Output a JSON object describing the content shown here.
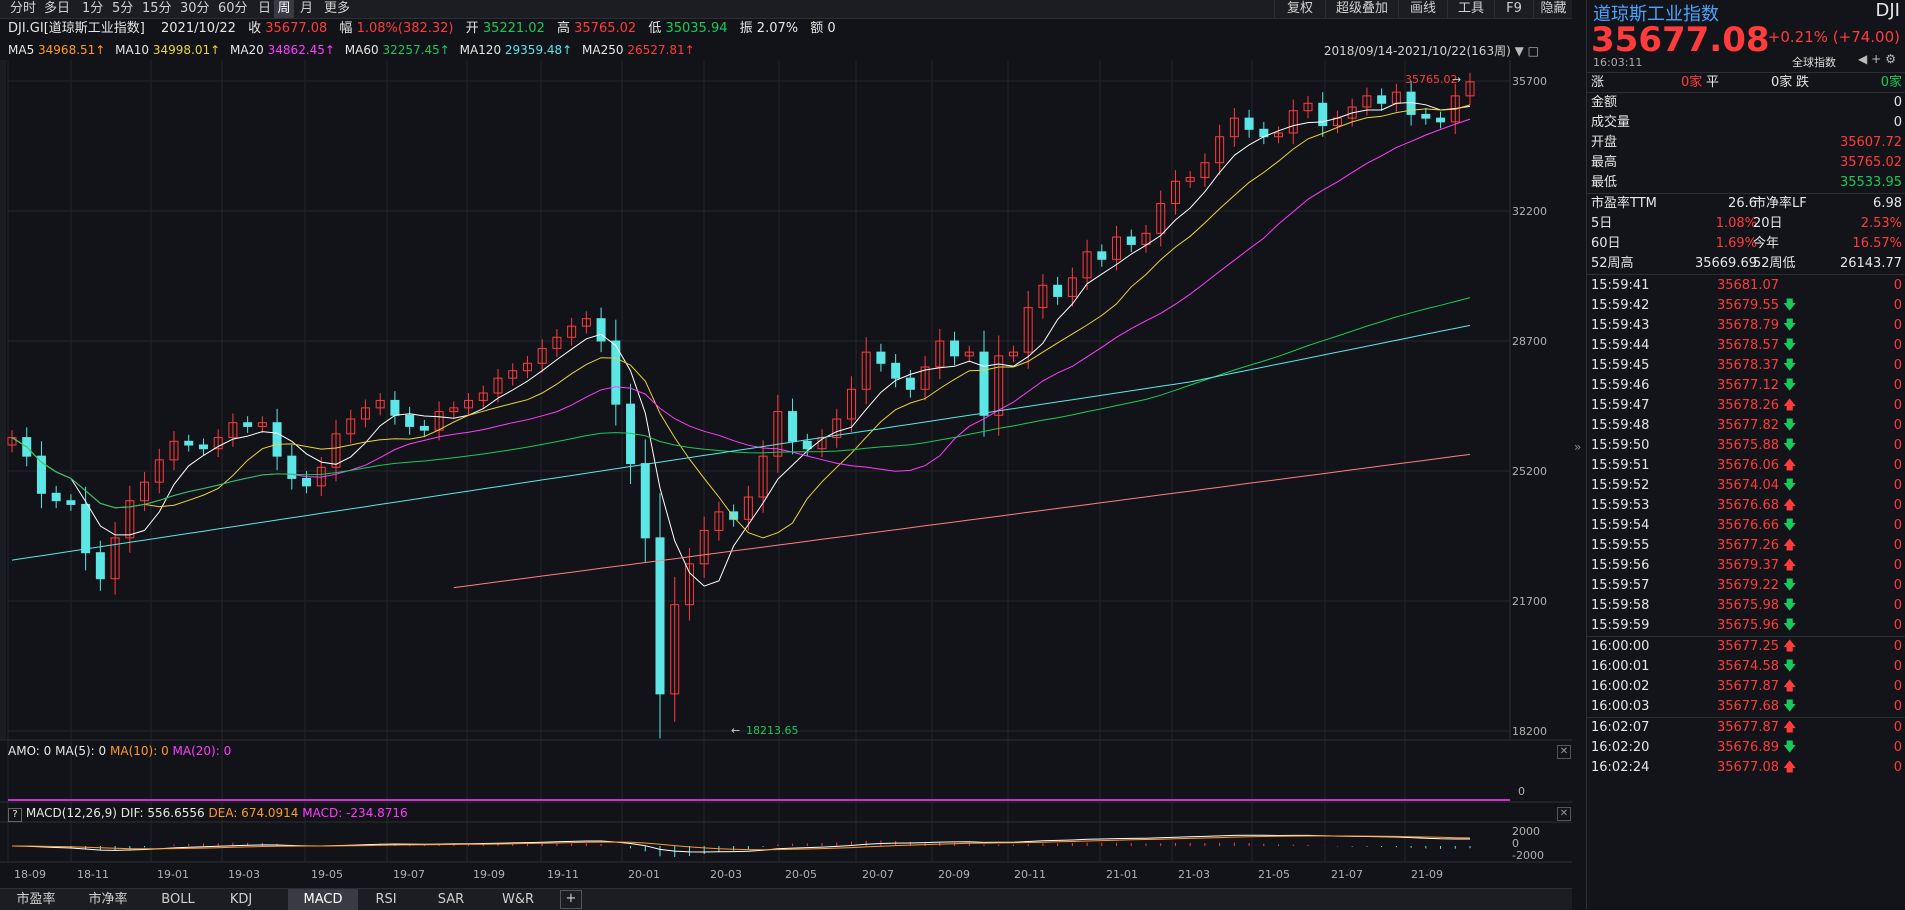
{
  "toolbar": {
    "periods": [
      "分时",
      "多日",
      "1分",
      "5分",
      "15分",
      "30分",
      "60分",
      "日",
      "周",
      "月",
      "更多"
    ],
    "active_period": "周",
    "right_items": [
      "复权",
      "超级叠加",
      "画线",
      "工具",
      "F9",
      "隐藏"
    ]
  },
  "info": {
    "name": "DJI.GI[道琼斯工业指数]",
    "date": "2021/10/22",
    "close_label": "收",
    "close": "35677.08",
    "change_label": "幅",
    "change": "1.08%(382.32)",
    "open_label": "开",
    "open": "35221.02",
    "high_label": "高",
    "high": "35765.02",
    "low_label": "低",
    "low": "35035.94",
    "amp_label": "振",
    "amp": "2.07%",
    "amount_label": "额",
    "amount": "0"
  },
  "ma": {
    "ma5_label": "MA5",
    "ma5": "34968.51↑",
    "ma10_label": "MA10",
    "ma10": "34998.01↑",
    "ma20_label": "MA20",
    "ma20": "34862.45↑",
    "ma60_label": "MA60",
    "ma60": "32257.45↑",
    "ma120_label": "MA120",
    "ma120": "29359.48↑",
    "ma250_label": "MA250",
    "ma250": "26527.81↑"
  },
  "range": "2018/09/14-2021/10/22(163周)",
  "price_axis": [
    "35700",
    "32200",
    "28700",
    "25200",
    "21700",
    "18200"
  ],
  "annotations": {
    "high": "35765.02",
    "low": "18213.65"
  },
  "amo": {
    "label": "AMO: 0",
    "ma5": "MA(5): 0",
    "ma10": "MA(10): 0",
    "ma20": "MA(20): 0",
    "axis": "0"
  },
  "macd": {
    "help": "?",
    "label": "MACD(12,26,9)",
    "dif": "DIF: 556.6556",
    "dea": "DEA: 674.0914",
    "macd": "MACD: -234.8716",
    "axis": [
      "2000",
      "0",
      "-2000"
    ]
  },
  "x_axis": [
    "18-09",
    "18-11",
    "19-01",
    "19-03",
    "19-05",
    "19-07",
    "19-09",
    "19-11",
    "20-01",
    "20-03",
    "20-05",
    "20-07",
    "20-09",
    "20-11",
    "21-01",
    "21-03",
    "21-05",
    "21-07",
    "21-09"
  ],
  "bottom_tabs": [
    "市盈率",
    "市净率",
    "BOLL",
    "KDJ",
    "MACD",
    "RSI",
    "SAR",
    "W&R"
  ],
  "active_tab": "MACD",
  "add_tab": "+",
  "panel": {
    "title": "道琼斯工业指数",
    "code": "DJI",
    "price": "35677.08",
    "change": "+0.21% (+74.00)",
    "time": "16:03:11",
    "market": "全球指数",
    "up_label": "涨",
    "up": "0家",
    "flat_label": "平",
    "flat": "0家",
    "down_label": "跌",
    "down": "0家",
    "stats": [
      {
        "label": "金额",
        "value": "0"
      },
      {
        "label": "成交量",
        "value": "0"
      },
      {
        "label": "开盘",
        "value": "35607.72"
      },
      {
        "label": "最高",
        "value": "35765.02"
      },
      {
        "label": "最低",
        "value": "35533.95"
      }
    ],
    "pe_label": "市盈率TTM",
    "pe": "26.6",
    "pb_label": "市净率LF",
    "pb": "6.98",
    "d5_label": "5日",
    "d5": "1.08%",
    "d20_label": "20日",
    "d20": "2.53%",
    "d60_label": "60日",
    "d60": "1.69%",
    "ytd_label": "今年",
    "ytd": "16.57%",
    "w52h_label": "52周高",
    "w52h": "35669.69",
    "w52l_label": "52周低",
    "w52l": "26143.77",
    "ticks": [
      {
        "time": "15:59:41",
        "price": "35681.07",
        "dir": "",
        "vol": "0"
      },
      {
        "time": "15:59:42",
        "price": "35679.55",
        "dir": "down",
        "vol": "0"
      },
      {
        "time": "15:59:43",
        "price": "35678.79",
        "dir": "down",
        "vol": "0"
      },
      {
        "time": "15:59:44",
        "price": "35678.57",
        "dir": "down",
        "vol": "0"
      },
      {
        "time": "15:59:45",
        "price": "35678.37",
        "dir": "down",
        "vol": "0"
      },
      {
        "time": "15:59:46",
        "price": "35677.12",
        "dir": "down",
        "vol": "0"
      },
      {
        "time": "15:59:47",
        "price": "35678.26",
        "dir": "up",
        "vol": "0"
      },
      {
        "time": "15:59:48",
        "price": "35677.82",
        "dir": "down",
        "vol": "0"
      },
      {
        "time": "15:59:50",
        "price": "35675.88",
        "dir": "down",
        "vol": "0"
      },
      {
        "time": "15:59:51",
        "price": "35676.06",
        "dir": "up",
        "vol": "0"
      },
      {
        "time": "15:59:52",
        "price": "35674.04",
        "dir": "down",
        "vol": "0"
      },
      {
        "time": "15:59:53",
        "price": "35676.68",
        "dir": "up",
        "vol": "0"
      },
      {
        "time": "15:59:54",
        "price": "35676.66",
        "dir": "down",
        "vol": "0"
      },
      {
        "time": "15:59:55",
        "price": "35677.26",
        "dir": "up",
        "vol": "0"
      },
      {
        "time": "15:59:56",
        "price": "35679.37",
        "dir": "up",
        "vol": "0"
      },
      {
        "time": "15:59:57",
        "price": "35679.22",
        "dir": "down",
        "vol": "0"
      },
      {
        "time": "15:59:58",
        "price": "35675.98",
        "dir": "down",
        "vol": "0"
      },
      {
        "time": "15:59:59",
        "price": "35675.96",
        "dir": "down",
        "vol": "0"
      },
      {
        "time": "16:00:00",
        "price": "35677.25",
        "dir": "up",
        "vol": "0"
      },
      {
        "time": "16:00:01",
        "price": "35674.58",
        "dir": "down",
        "vol": "0"
      },
      {
        "time": "16:00:02",
        "price": "35677.87",
        "dir": "up",
        "vol": "0"
      },
      {
        "time": "16:00:03",
        "price": "35677.68",
        "dir": "down",
        "vol": "0"
      },
      {
        "time": "16:02:07",
        "price": "35677.87",
        "dir": "up",
        "vol": "0"
      },
      {
        "time": "16:02:20",
        "price": "35676.89",
        "dir": "down",
        "vol": "0"
      },
      {
        "time": "16:02:24",
        "price": "35677.08",
        "dir": "up",
        "vol": "0"
      }
    ]
  },
  "colors": {
    "up": "#ff3b3b",
    "down": "#19c95a",
    "candle_down": "#5de6e6",
    "ma5": "#ffffff",
    "ma10": "#e9d43a",
    "ma20": "#ff3bff",
    "ma60": "#19c95a",
    "ma120": "#5de6e6",
    "ma250": "#ff8080"
  },
  "chart_data": {
    "type": "candlestick",
    "period": "weekly",
    "ylim": [
      18200,
      35700
    ],
    "series_close": [
      26100,
      25600,
      24600,
      24400,
      24300,
      23000,
      22300,
      23400,
      24400,
      24900,
      25500,
      26000,
      25900,
      25800,
      26100,
      26500,
      26400,
      26500,
      25600,
      25000,
      24800,
      25300,
      26200,
      26600,
      26900,
      27100,
      26700,
      26400,
      26300,
      26800,
      26900,
      27100,
      27300,
      27700,
      27900,
      28100,
      28500,
      28800,
      29100,
      29300,
      28700,
      27000,
      25400,
      23400,
      19200,
      21600,
      22700,
      23600,
      24100,
      23900,
      24500,
      25600,
      26800,
      26000,
      25800,
      26100,
      26600,
      27400,
      28400,
      28100,
      27700,
      27400,
      28000,
      28700,
      28300,
      28400,
      26700,
      28300,
      28400,
      29600,
      30200,
      29900,
      30400,
      31100,
      30900,
      31500,
      31300,
      31600,
      32400,
      33000,
      33100,
      33500,
      34200,
      34700,
      34400,
      34200,
      34300,
      34900,
      35100,
      34500,
      34700,
      35000,
      35300,
      35100,
      35400,
      34800,
      34700,
      34600,
      35300,
      35677
    ]
  }
}
